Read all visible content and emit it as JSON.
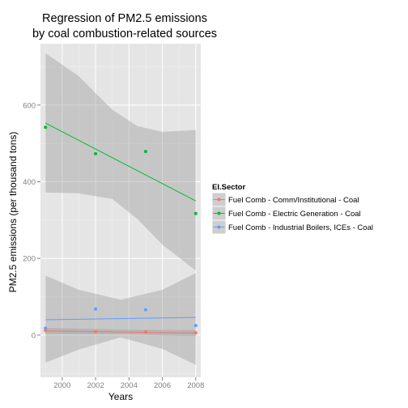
{
  "chart_data": {
    "type": "scatter",
    "title": [
      "Regression of PM2.5 emissions",
      "by coal combustion-related sources"
    ],
    "xlabel": "Years",
    "ylabel": "PM2.5 emissions (per thousand tons)",
    "xlim": [
      1998.7,
      2008.3
    ],
    "ylim": [
      -110,
      760
    ],
    "x_ticks": [
      2000,
      2002,
      2004,
      2006,
      2008
    ],
    "y_ticks": [
      0,
      200,
      400,
      600
    ],
    "grid": true,
    "legend_position": "right",
    "legend_title": "EI.Sector",
    "series": [
      {
        "name": "Fuel Comb - Comm/Institutional - Coal",
        "color": "#f8766d",
        "points": [
          [
            1999,
            12
          ],
          [
            2002,
            9
          ],
          [
            2005,
            8
          ],
          [
            2008,
            6
          ]
        ],
        "fit": {
          "x0": 1999,
          "y0": 11,
          "x1": 2008,
          "y1": 5
        },
        "band": [
          [
            1999,
            19,
            3
          ],
          [
            2003.5,
            14,
            2
          ],
          [
            2008,
            13,
            -3
          ]
        ]
      },
      {
        "name": "Fuel Comb - Electric Generation - Coal",
        "color": "#00ba38",
        "points": [
          [
            1999,
            542
          ],
          [
            2002,
            473
          ],
          [
            2005,
            479
          ],
          [
            2008,
            317
          ]
        ],
        "fit": {
          "x0": 1999,
          "y0": 553,
          "x1": 2008,
          "y1": 350
        },
        "band": [
          [
            1999,
            735,
            372
          ],
          [
            2001,
            675,
            370
          ],
          [
            2003,
            588,
            355
          ],
          [
            2004.5,
            545,
            303
          ],
          [
            2006,
            530,
            236
          ],
          [
            2008,
            535,
            168
          ]
        ]
      },
      {
        "name": "Fuel Comb - Industrial Boilers, ICEs - Coal",
        "color": "#619cff",
        "points": [
          [
            1999,
            18
          ],
          [
            2002,
            68
          ],
          [
            2005,
            66
          ],
          [
            2008,
            25
          ]
        ],
        "fit": {
          "x0": 1999,
          "y0": 40,
          "x1": 2008,
          "y1": 46
        },
        "band": [
          [
            1999,
            155,
            -72
          ],
          [
            2001,
            118,
            -38
          ],
          [
            2003.5,
            92,
            -6
          ],
          [
            2006,
            118,
            -36
          ],
          [
            2008,
            162,
            -78
          ]
        ]
      }
    ]
  }
}
